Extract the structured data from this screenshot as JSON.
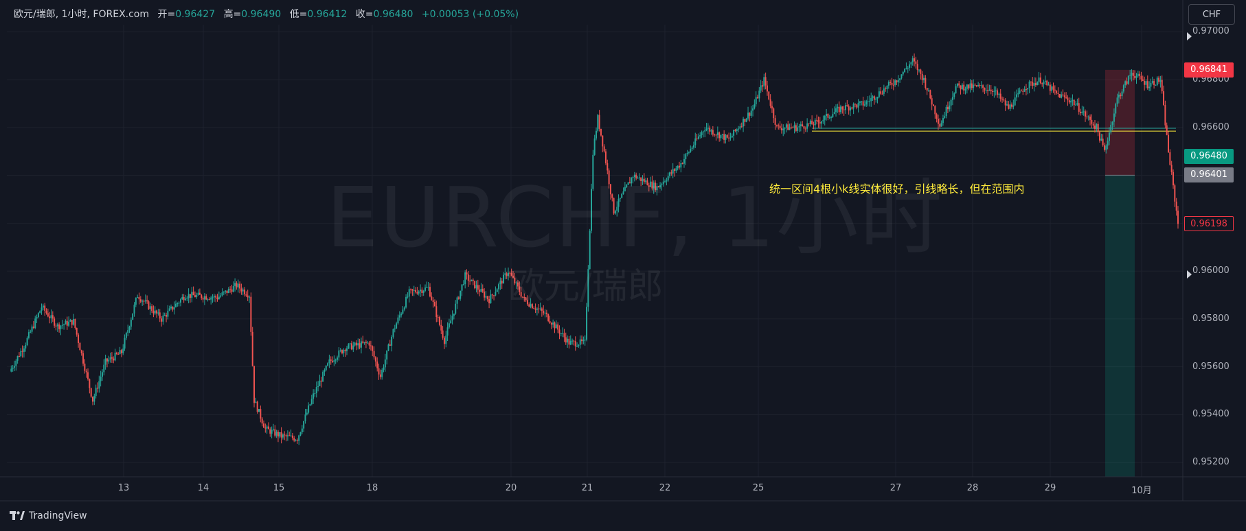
{
  "header": {
    "symbol": "欧元/瑞郎, 1小时, FOREX.com",
    "open_label": "开=",
    "open_value": "0.96427",
    "high_label": "高=",
    "high_value": "0.96490",
    "low_label": "低=",
    "low_value": "0.96412",
    "close_label": "收=",
    "close_value": "0.96480",
    "change": "+0.00053 (+0.05%)"
  },
  "currency_button": "CHF",
  "watermark": {
    "symbol": "EURCHF, 1小时",
    "name": "欧元/瑞郎"
  },
  "annotation": "统一区间4根小k线实体很好，引线略长，但在范围内",
  "price_tags": [
    {
      "label": "0.96841",
      "color": "#f23645",
      "style": "filled",
      "value": 0.96841
    },
    {
      "label": "0.96480",
      "color": "#089981",
      "style": "filled",
      "value": 0.9648
    },
    {
      "label": "0.96401",
      "color": "#787b86",
      "style": "filled",
      "value": 0.96401
    },
    {
      "label": "0.96198",
      "color": "#f23645",
      "style": "outline",
      "value": 0.96198
    }
  ],
  "footer": {
    "brand": "TradingView",
    "logo_icon": "tradingview-logo-icon"
  },
  "colors": {
    "up": "#26a69a",
    "down": "#ef5350",
    "background": "#131722",
    "grid": "#1f2330"
  },
  "chart_data": {
    "type": "candlestick",
    "ylim": [
      0.9514,
      0.9703
    ],
    "y_ticks": [
      "0.97000",
      "0.96800",
      "0.96600",
      "0.96400",
      "0.96200",
      "0.96000",
      "0.95800",
      "0.95600",
      "0.95400",
      "0.95200"
    ],
    "y_tick_values": [
      0.97,
      0.968,
      0.966,
      0.964,
      0.962,
      0.96,
      0.958,
      0.956,
      0.954,
      0.952
    ],
    "x_ticks": [
      "13",
      "14",
      "15",
      "18",
      "20",
      "21",
      "22",
      "25",
      "27",
      "28",
      "29",
      "10月"
    ],
    "horizontal_lines": [
      {
        "value": 0.96597,
        "color": "#26a69a"
      },
      {
        "value": 0.96585,
        "color": "#ffeb3b"
      }
    ],
    "position_tool": {
      "entry": 0.96401,
      "stop": 0.96841,
      "target": 0.9514
    },
    "close_path": [
      [
        0,
        0.9558
      ],
      [
        10,
        0.957
      ],
      [
        20,
        0.9585
      ],
      [
        30,
        0.9577
      ],
      [
        40,
        0.9579
      ],
      [
        52,
        0.9546
      ],
      [
        60,
        0.9562
      ],
      [
        70,
        0.9566
      ],
      [
        80,
        0.959
      ],
      [
        95,
        0.958
      ],
      [
        110,
        0.959
      ],
      [
        130,
        0.9589
      ],
      [
        142,
        0.9594
      ],
      [
        150,
        0.959
      ],
      [
        153,
        0.9546
      ],
      [
        160,
        0.9534
      ],
      [
        170,
        0.9531
      ],
      [
        180,
        0.953
      ],
      [
        190,
        0.9548
      ],
      [
        200,
        0.9562
      ],
      [
        210,
        0.9568
      ],
      [
        225,
        0.957
      ],
      [
        232,
        0.9556
      ],
      [
        240,
        0.9575
      ],
      [
        250,
        0.9591
      ],
      [
        262,
        0.9593
      ],
      [
        272,
        0.9571
      ],
      [
        285,
        0.9598
      ],
      [
        300,
        0.9588
      ],
      [
        312,
        0.96
      ],
      [
        322,
        0.9588
      ],
      [
        335,
        0.9582
      ],
      [
        350,
        0.957
      ],
      [
        360,
        0.957
      ],
      [
        365,
        0.965
      ],
      [
        368,
        0.9664
      ],
      [
        372,
        0.965
      ],
      [
        378,
        0.9625
      ],
      [
        390,
        0.964
      ],
      [
        405,
        0.9635
      ],
      [
        420,
        0.9645
      ],
      [
        435,
        0.966
      ],
      [
        450,
        0.9655
      ],
      [
        465,
        0.9668
      ],
      [
        472,
        0.968
      ],
      [
        480,
        0.966
      ],
      [
        492,
        0.966
      ],
      [
        505,
        0.9662
      ],
      [
        520,
        0.9668
      ],
      [
        535,
        0.967
      ],
      [
        555,
        0.968
      ],
      [
        565,
        0.9688
      ],
      [
        572,
        0.968
      ],
      [
        582,
        0.9661
      ],
      [
        592,
        0.9677
      ],
      [
        605,
        0.9677
      ],
      [
        615,
        0.9676
      ],
      [
        625,
        0.9668
      ],
      [
        635,
        0.9677
      ],
      [
        645,
        0.968
      ],
      [
        655,
        0.9674
      ],
      [
        665,
        0.9671
      ],
      [
        680,
        0.966
      ],
      [
        685,
        0.965
      ],
      [
        693,
        0.9672
      ],
      [
        702,
        0.9683
      ],
      [
        712,
        0.9678
      ],
      [
        720,
        0.968
      ],
      [
        725,
        0.965
      ],
      [
        731,
        0.962
      ]
    ]
  }
}
